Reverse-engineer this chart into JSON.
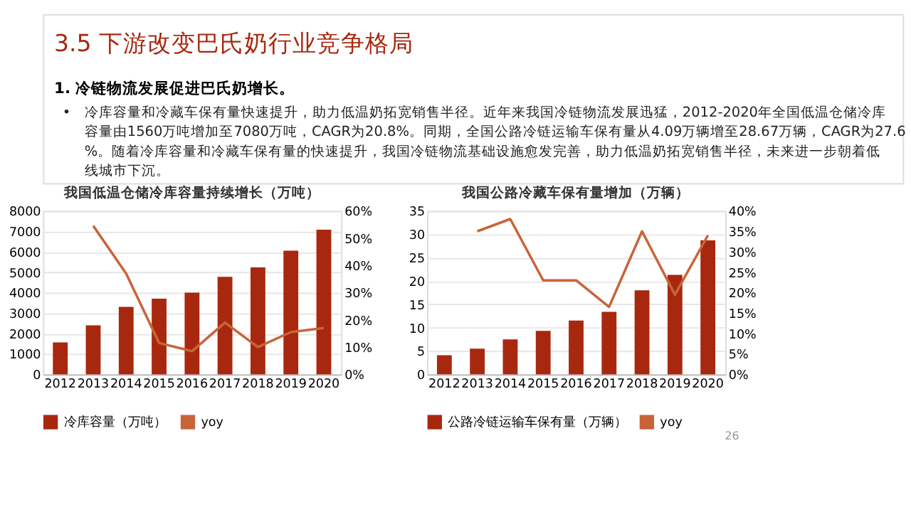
{
  "chart_data": [
    {
      "type": "bar",
      "title": "我国低温仓储冷库容量持续增长（万吨）",
      "annotations": [
        "3.5 下游改变巴氏奶行业竞争格局",
        "1. 冷链物流发展促进巴氏奶增长。",
        "•",
        "冷库容量和冷藏车保有量快速提升，助力低温奶拓宽销售半径。近年来我国冷链物流发展迅猛，2012-2020年全国低温仓储冷库容量由1560万吨增加至7080万吨，CAGR为20.8%。同期，全国公路冷链运输车保有量从4.09万辆增至28.67万辆，CAGR为27.6%。随着冷库容量和冷藏车保有量的快速提升，我国冷链物流基础设施愈发完善，助力低温奶拓宽销售半径，未来进一步朝着低线城市下沉。"
      ],
      "categories": [
        "2012",
        "2013",
        "2014",
        "2015",
        "2016",
        "2017",
        "2018",
        "2019",
        "2020"
      ],
      "series": [
        {
          "name": "冷库容量（万吨）",
          "color": "#a8280f",
          "values": [
            1560,
            2400,
            3300,
            3700,
            4000,
            4770,
            5230,
            6050,
            7080
          ]
        },
        {
          "name": "yoy",
          "type": "line",
          "axis": "y2",
          "color": "#c8643a",
          "values": [
            null,
            54.5,
            37,
            11.5,
            8.5,
            19,
            10,
            15.5,
            17
          ]
        }
      ],
      "ylim": [
        0,
        8000
      ],
      "yticks": [
        0,
        1000,
        2000,
        3000,
        4000,
        5000,
        6000,
        7000,
        8000
      ],
      "y2lim": [
        0,
        60
      ],
      "y2ticks": [
        {
          "value": 0,
          "label": "0%"
        },
        {
          "value": 10,
          "label": "10%"
        },
        {
          "value": 20,
          "label": "20%"
        },
        {
          "value": 30,
          "label": "30%"
        },
        {
          "value": 40,
          "label": "40%"
        },
        {
          "value": 50,
          "label": "50%"
        },
        {
          "value": 60,
          "label": "60%"
        }
      ],
      "grid": "y",
      "legend": "bottom"
    },
    {
      "type": "bar",
      "title": "我国公路冷藏车保有量增加（万辆）",
      "annotations": [
        "26"
      ],
      "categories": [
        "2012",
        "2013",
        "2014",
        "2015",
        "2016",
        "2017",
        "2018",
        "2019",
        "2020"
      ],
      "series": [
        {
          "name": "公路冷链运输车保有量（万辆）",
          "color": "#a8280f",
          "values": [
            4.09,
            5.5,
            7.5,
            9.3,
            11.5,
            13.4,
            18,
            21.3,
            28.67
          ]
        },
        {
          "name": "yoy",
          "type": "line",
          "axis": "y2",
          "color": "#c8643a",
          "values": [
            null,
            35,
            38,
            23,
            23,
            16.5,
            35,
            19.5,
            34
          ]
        }
      ],
      "ylim": [
        0,
        35
      ],
      "yticks": [
        0,
        5,
        10,
        15,
        20,
        25,
        30,
        35
      ],
      "y2lim": [
        0,
        40
      ],
      "y2ticks": [
        {
          "value": 0,
          "label": "0%"
        },
        {
          "value": 5,
          "label": "5%"
        },
        {
          "value": 10,
          "label": "10%"
        },
        {
          "value": 15,
          "label": "15%"
        },
        {
          "value": 20,
          "label": "20%"
        },
        {
          "value": 25,
          "label": "25%"
        },
        {
          "value": 30,
          "label": "30%"
        },
        {
          "value": 35,
          "label": "35%"
        },
        {
          "value": 40,
          "label": "40%"
        }
      ],
      "grid": "y",
      "legend": "bottom"
    }
  ]
}
